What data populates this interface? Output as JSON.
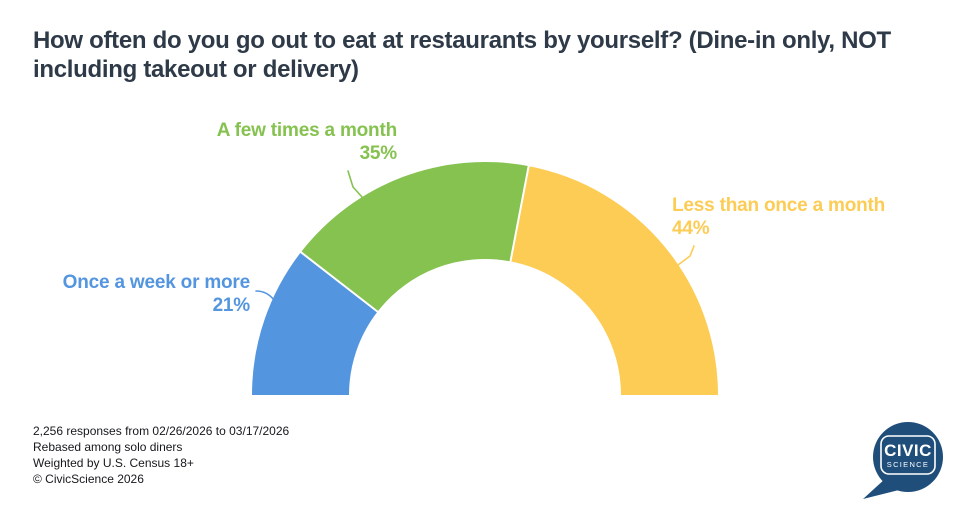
{
  "title": "How often do you go out to eat at restaurants by yourself? (Dine-in only, NOT including takeout or delivery)",
  "chart_data": {
    "type": "pie",
    "subtype": "half-donut-gauge",
    "title": "How often do you go out to eat at restaurants by yourself? (Dine-in only, NOT including takeout or delivery)",
    "categories": [
      "Once a week or more",
      "A few times a month",
      "Less than once a month"
    ],
    "values": [
      21,
      35,
      44
    ],
    "unit": "%",
    "total_angle_degrees": 180,
    "start_side": "left",
    "legend_position": "external-labels-with-leader-lines",
    "segments": [
      {
        "id": "once-a-week-or-more",
        "label": "Once a week or more",
        "value": 21,
        "value_label": "21%",
        "color": "#5495E0"
      },
      {
        "id": "a-few-times-a-month",
        "label": "A few times a month",
        "value": 35,
        "value_label": "35%",
        "color": "#86C250"
      },
      {
        "id": "less-than-once-a-month",
        "label": "Less than once a month",
        "value": 44,
        "value_label": "44%",
        "color": "#FCCC55"
      }
    ]
  },
  "footer": {
    "lines": [
      "2,256 responses from 02/26/2026 to 03/17/2026",
      "Rebased among solo diners",
      "Weighted by U.S. Census 18+",
      "© CivicScience 2026"
    ]
  },
  "logo": {
    "line1": "CIVIC",
    "line2": "SCIENCE",
    "bubble_color": "#1F4E7B"
  },
  "colors": {
    "title_text": "#2E3A48",
    "background": "#FFFFFF",
    "separator": "#FFFFFF"
  }
}
